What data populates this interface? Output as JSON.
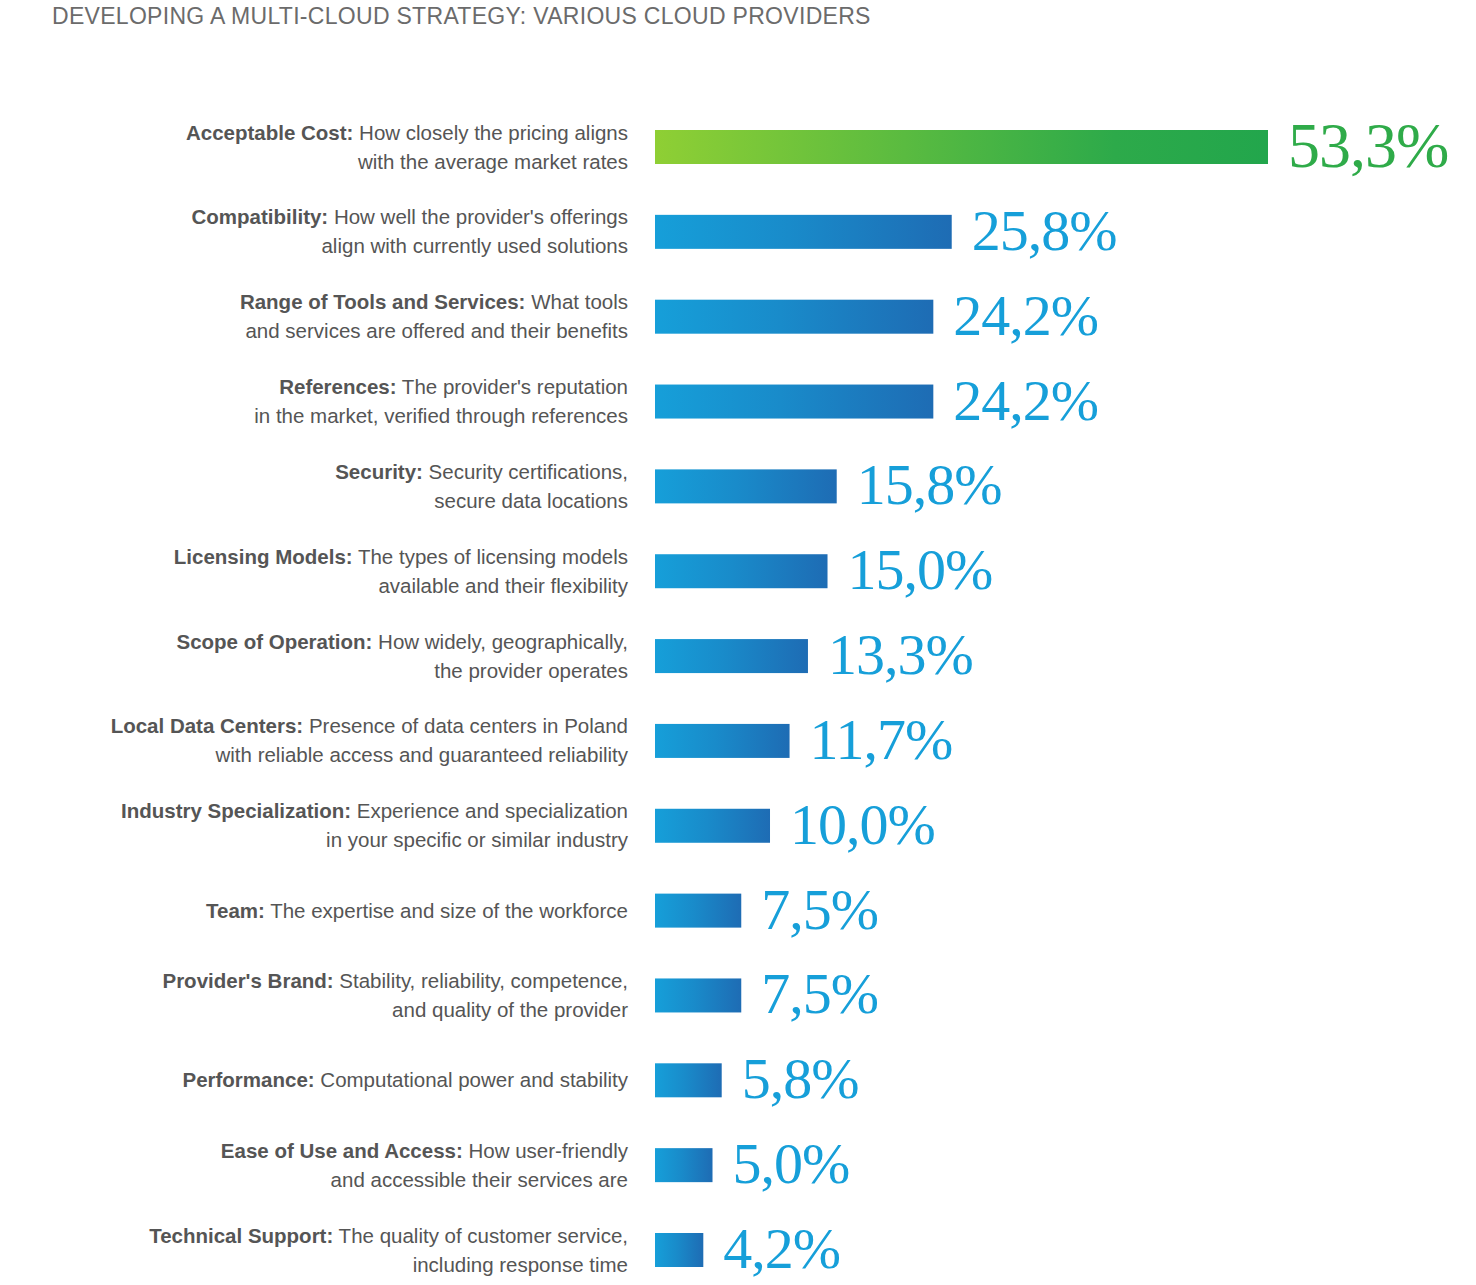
{
  "chart_data": {
    "type": "bar",
    "orientation": "horizontal",
    "title": "DEVELOPING A MULTI-CLOUD STRATEGY: VARIOUS CLOUD PROVIDERS",
    "categories": [
      "Acceptable Cost: How closely the pricing aligns\nwith the average market rates",
      "Compatibility: How well the provider's offerings\nalign with currently used solutions",
      "Range of Tools and Services: What tools\nand services are offered and their benefits",
      "References: The provider's reputation\nin the market, verified through references",
      "Security: Security certifications,\nsecure data locations",
      "Licensing Models: The types of licensing models\navailable and their flexibility",
      "Scope of Operation: How widely, geographically,\nthe provider operates",
      "Local Data Centers: Presence of data centers in Poland\nwith reliable access and guaranteed reliability",
      "Industry Specialization: Experience and specialization\nin your specific or similar industry",
      "Team: The expertise and size of the workforce",
      "Provider's Brand: Stability, reliability, competence,\nand quality of the provider",
      "Performance: Computational power and stability",
      "Ease of Use and Access: How user-friendly\nand accessible their services are",
      "Technical Support: The quality of customer service,\nincluding response time"
    ],
    "values": [
      53.3,
      25.8,
      24.2,
      24.2,
      15.8,
      15.0,
      13.3,
      11.7,
      10.0,
      7.5,
      7.5,
      5.8,
      5.0,
      4.2
    ],
    "value_labels": [
      "53,3%",
      "25,8%",
      "24,2%",
      "24,2%",
      "15,8%",
      "15,0%",
      "13,3%",
      "11,7%",
      "10,0%",
      "7,5%",
      "7,5%",
      "5,8%",
      "5,0%",
      "4,2%"
    ],
    "colors": [
      "#22a64c",
      "#1e6cb4",
      "#1e6cb4",
      "#1e6cb4",
      "#1e6cb4",
      "#1e6cb4",
      "#1e6cb4",
      "#1e6cb4",
      "#1e6cb4",
      "#1e6cb4",
      "#1e6cb4",
      "#1e6cb4",
      "#1e6cb4",
      "#1e6cb4"
    ],
    "xlim": [
      0,
      53.3
    ],
    "data_labels": true,
    "tick_labels": false,
    "grid": false
  }
}
